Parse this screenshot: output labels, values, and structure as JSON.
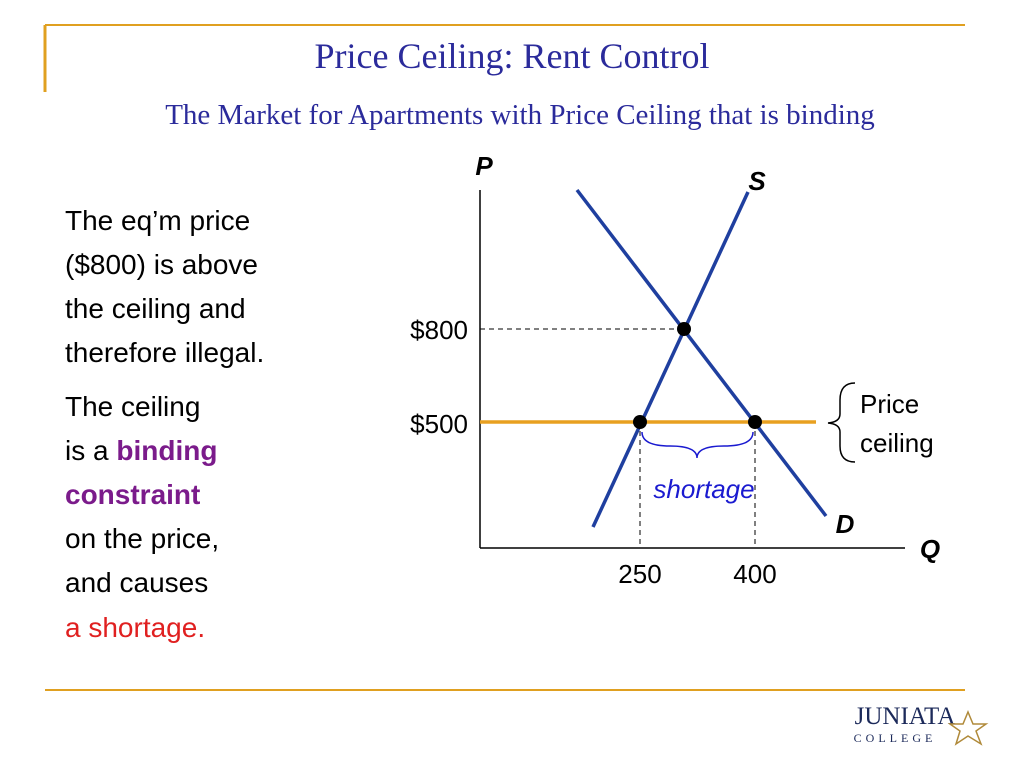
{
  "header": {
    "title": "Price Ceiling: Rent Control",
    "subtitle": "The Market for Apartments with Price Ceiling that is binding"
  },
  "body": {
    "paragraph1": [
      "The eq’m price",
      "($800) is above",
      "the ceiling and",
      "therefore illegal."
    ],
    "paragraph2": {
      "line1": "The ceiling",
      "line2_start": "is a ",
      "line2_emphasis": "binding",
      "line3": "constraint",
      "line4": "on the price,",
      "line5": "and causes",
      "line6": "a shortage."
    }
  },
  "diagram": {
    "y_axis_label": "P",
    "x_axis_label": "Q",
    "supply_label": "S",
    "demand_label": "D",
    "equilibrium_price": "$800",
    "ceiling_price": "$500",
    "quantity_supplied": "250",
    "quantity_demanded": "400",
    "ceiling_label": [
      "Price",
      "ceiling"
    ],
    "gap_label": "shortage"
  },
  "logo": {
    "name": "JUNIATA",
    "subname": "COLLEGE"
  }
}
